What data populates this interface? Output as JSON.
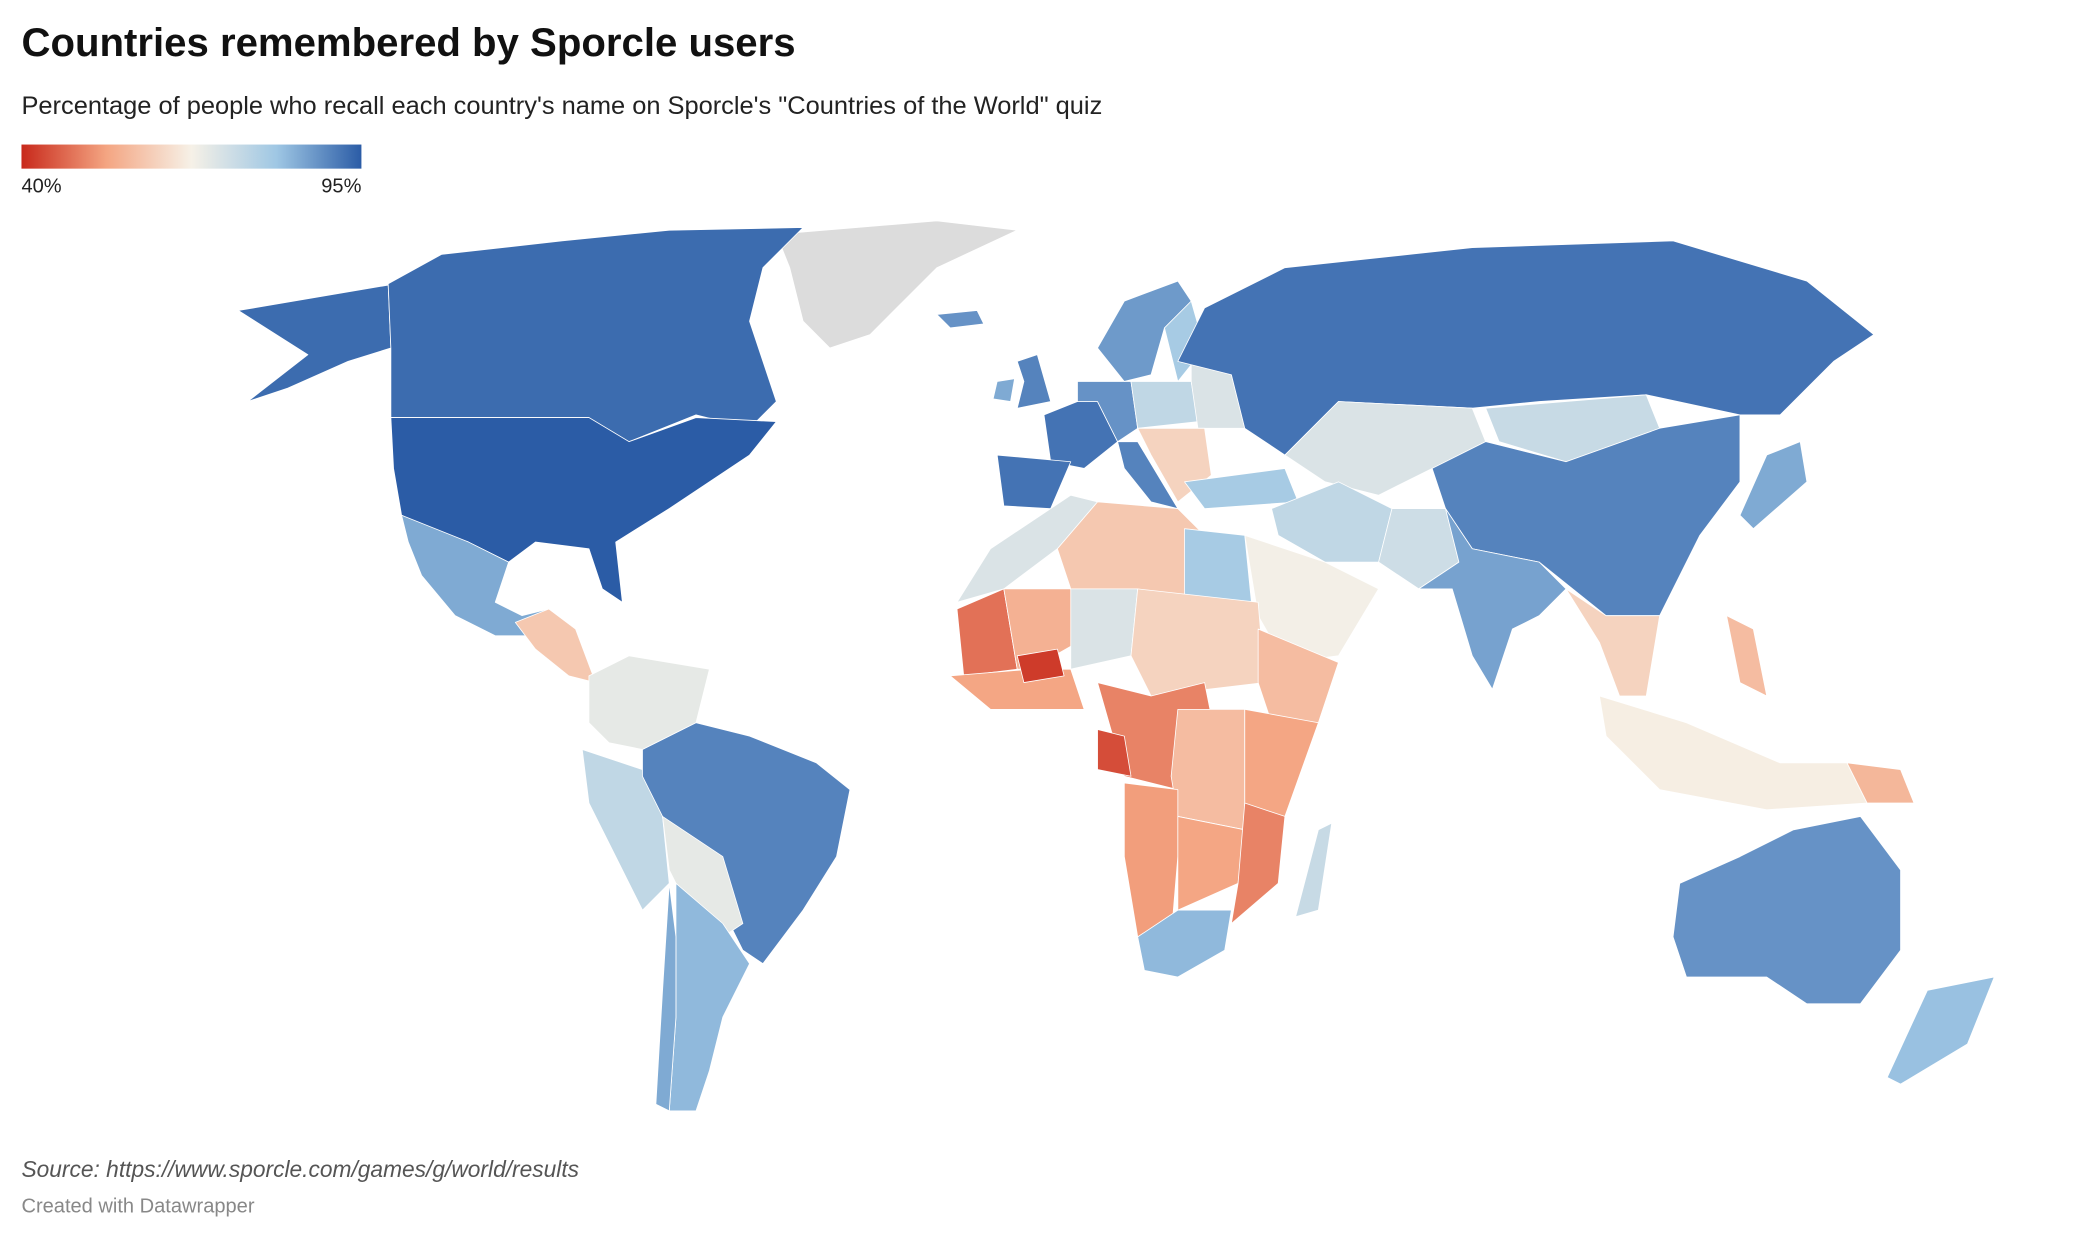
{
  "header": {
    "title": "Countries remembered by Sporcle users",
    "subtitle": "Percentage of people who recall each country's name on Sporcle's \"Countries of the World\" quiz"
  },
  "legend": {
    "min": {
      "value": 40,
      "label": "40%"
    },
    "max": {
      "value": 95,
      "label": "95%"
    },
    "colors": [
      "#c8291b",
      "#f4a582",
      "#f6f1e7",
      "#9fc7e4",
      "#2b5ca6"
    ]
  },
  "map": {
    "no_data_color": "#dcdcdc",
    "values": [
      93,
      93,
      95,
      85,
      60,
      70,
      76,
      90,
      70,
      83,
      85,
      88,
      90,
      85,
      92,
      92,
      88,
      90,
      87,
      80,
      76,
      72,
      62,
      92,
      80,
      72,
      75,
      90,
      85,
      76,
      74,
      68,
      86,
      62,
      67,
      57,
      58,
      88,
      82,
      75,
      72,
      60,
      80,
      48,
      56,
      72,
      62,
      54,
      42,
      58,
      50,
      44,
      58,
      54,
      53,
      54,
      50,
      83
    ]
  },
  "footer": {
    "source": "Source: https://www.sporcle.com/games/g/world/results",
    "credit": "Created with Datawrapper"
  }
}
